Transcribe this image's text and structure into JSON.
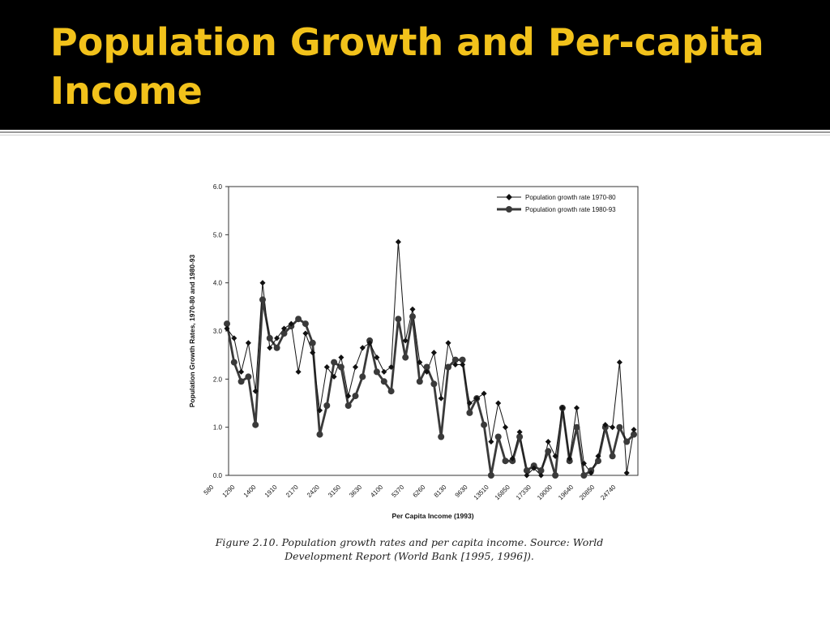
{
  "slide": {
    "title": "Population Growth and Per-capita Income"
  },
  "caption": "Figure 2.10.  Population growth rates and per capita income. Source: World Development Report (World Bank [1995, 1996]).",
  "colors": {
    "title_bar": "#000000",
    "title_text": "#f2c21b",
    "series_1970_80": "#111111",
    "series_1980_93": "#3a3a3a"
  },
  "chart_data": {
    "type": "line",
    "title": "",
    "xlabel": "Per Capita Income (1993)",
    "ylabel": "Population Growth Rates, 1970-80 and 1980-93",
    "ylim": [
      0,
      6
    ],
    "yticks": [
      "0.0",
      "1.0",
      "2.0",
      "3.0",
      "4.0",
      "5.0",
      "6.0"
    ],
    "xtick_labels": [
      "580",
      "1290",
      "1400",
      "1910",
      "2170",
      "2420",
      "3150",
      "3630",
      "4100",
      "5370",
      "6260",
      "8130",
      "9630",
      "13510",
      "16850",
      "17330",
      "19000",
      "19640",
      "20850",
      "24740"
    ],
    "grid": false,
    "legend_position": "top-right",
    "series": [
      {
        "name": "Population growth  rate 1970-80",
        "marker": "diamond",
        "values": [
          3.05,
          2.85,
          2.15,
          2.75,
          1.75,
          4.0,
          2.65,
          2.85,
          3.05,
          3.15,
          2.15,
          2.95,
          2.55,
          1.35,
          2.25,
          2.05,
          2.45,
          1.65,
          2.25,
          2.65,
          2.75,
          2.45,
          2.15,
          2.25,
          4.85,
          2.8,
          3.45,
          2.35,
          2.15,
          2.55,
          1.6,
          2.75,
          2.3,
          2.3,
          1.5,
          1.6,
          1.7,
          0.7,
          1.5,
          1.0,
          0.35,
          0.9,
          0.0,
          0.15,
          0.0,
          0.7,
          0.4,
          1.4,
          0.35,
          1.4,
          0.25,
          0.05,
          0.4,
          1.05,
          1.0,
          2.35,
          0.05,
          0.95
        ]
      },
      {
        "name": "Population growth  rate 1980-93",
        "marker": "circle",
        "values": [
          3.15,
          2.35,
          1.95,
          2.05,
          1.05,
          3.65,
          2.85,
          2.65,
          2.95,
          3.1,
          3.25,
          3.15,
          2.75,
          0.85,
          1.45,
          2.35,
          2.25,
          1.45,
          1.65,
          2.05,
          2.8,
          2.15,
          1.95,
          1.75,
          3.25,
          2.45,
          3.3,
          1.95,
          2.25,
          1.9,
          0.8,
          2.25,
          2.4,
          2.4,
          1.3,
          1.6,
          1.05,
          0.0,
          0.8,
          0.3,
          0.3,
          0.8,
          0.1,
          0.2,
          0.1,
          0.5,
          0.0,
          1.4,
          0.3,
          1.0,
          0.0,
          0.1,
          0.3,
          1.0,
          0.4,
          1.0,
          0.7,
          0.85
        ]
      }
    ]
  }
}
